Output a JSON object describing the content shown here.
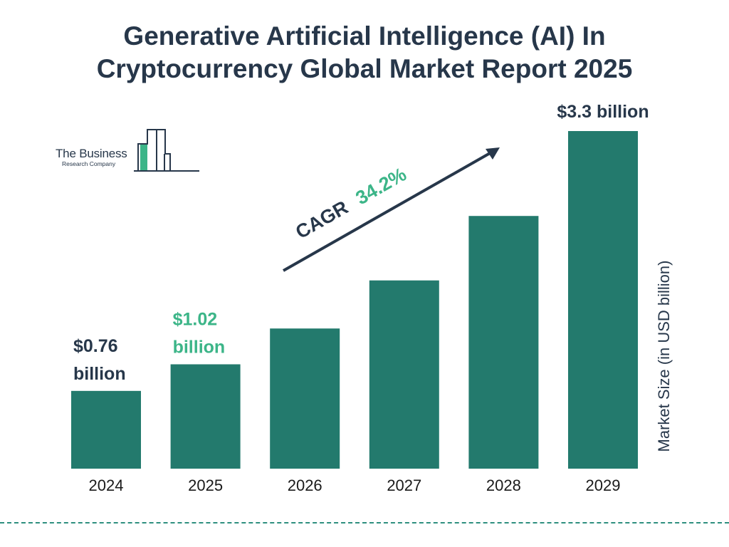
{
  "header": {
    "title_line1": "Generative Artificial Intelligence (AI) In",
    "title_line2": "Cryptocurrency Global Market Report 2025"
  },
  "logo": {
    "name": "The Business",
    "subtitle": "Research Company"
  },
  "cagr": {
    "label": "CAGR",
    "value": "34.2%"
  },
  "colors": {
    "bar": "#237a6d",
    "title": "#27374a",
    "accent": "#3cb588",
    "dark_label": "#27374a"
  },
  "chart_data": {
    "type": "bar",
    "categories": [
      "2024",
      "2025",
      "2026",
      "2027",
      "2028",
      "2029"
    ],
    "values": [
      0.76,
      1.02,
      1.37,
      1.84,
      2.47,
      3.3
    ],
    "ylabel": "Market Size (in USD billion)",
    "ylim": [
      0,
      3.3
    ],
    "grid": false,
    "data_labels": [
      {
        "index": 0,
        "lines": [
          "$0.76",
          "billion"
        ],
        "color": "#27374a"
      },
      {
        "index": 1,
        "lines": [
          "$1.02",
          "billion"
        ],
        "color": "#3cb588"
      },
      {
        "index": 5,
        "lines": [
          "$3.3 billion"
        ],
        "color": "#27374a"
      }
    ]
  }
}
